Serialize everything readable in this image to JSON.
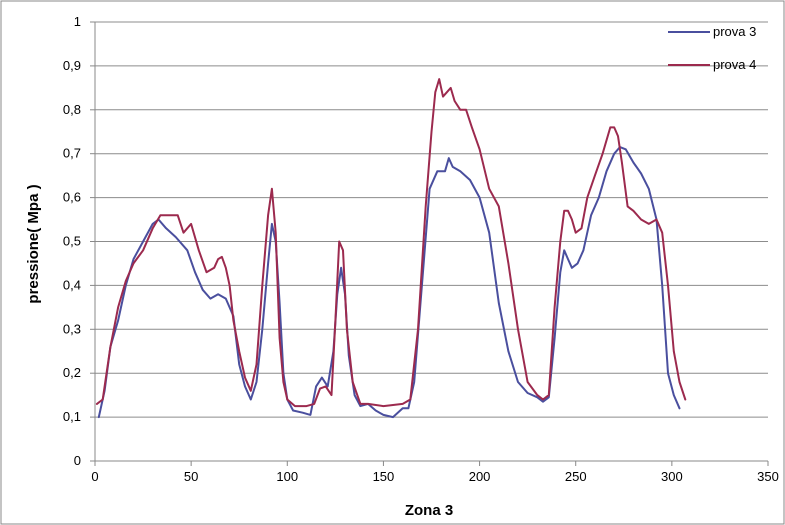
{
  "chart_data": {
    "type": "line",
    "title": "",
    "xlabel": "Zona 3",
    "ylabel": "pressione( Mpa )",
    "xlim": [
      0,
      350
    ],
    "ylim": [
      0,
      1
    ],
    "x_ticks": [
      0,
      50,
      100,
      150,
      200,
      250,
      300,
      350
    ],
    "y_ticks": [
      0,
      0.1,
      0.2,
      0.3,
      0.4,
      0.5,
      0.6,
      0.7,
      0.8,
      0.9,
      1
    ],
    "x_tick_labels": [
      "0",
      "50",
      "100",
      "150",
      "200",
      "250",
      "300",
      "350"
    ],
    "y_tick_labels": [
      "0",
      "0,1",
      "0,2",
      "0,3",
      "0,4",
      "0,5",
      "0,6",
      "0,7",
      "0,8",
      "0,9",
      "1"
    ],
    "grid": "horizontal",
    "legend_position": "top-right",
    "series": [
      {
        "name": "prova 3",
        "color": "#4a4f9e",
        "x": [
          2,
          5,
          8,
          12,
          16,
          20,
          25,
          30,
          33,
          37,
          42,
          48,
          52,
          56,
          60,
          64,
          68,
          72,
          75,
          78,
          81,
          84,
          87,
          90,
          92,
          94,
          96,
          98,
          100,
          103,
          108,
          112,
          115,
          118,
          121,
          124,
          126,
          128,
          130,
          132,
          135,
          138,
          142,
          146,
          150,
          155,
          160,
          163,
          166,
          170,
          174,
          178,
          182,
          184,
          186,
          190,
          195,
          200,
          205,
          210,
          215,
          220,
          225,
          230,
          233,
          236,
          239,
          242,
          244,
          246,
          248,
          251,
          254,
          258,
          262,
          266,
          270,
          273,
          276,
          280,
          284,
          288,
          292,
          295,
          298,
          301,
          304
        ],
        "y": [
          0.1,
          0.16,
          0.26,
          0.32,
          0.4,
          0.46,
          0.5,
          0.54,
          0.55,
          0.53,
          0.51,
          0.48,
          0.43,
          0.39,
          0.37,
          0.38,
          0.37,
          0.33,
          0.22,
          0.17,
          0.14,
          0.18,
          0.3,
          0.45,
          0.54,
          0.5,
          0.36,
          0.2,
          0.14,
          0.115,
          0.11,
          0.105,
          0.17,
          0.19,
          0.17,
          0.25,
          0.38,
          0.44,
          0.38,
          0.24,
          0.15,
          0.125,
          0.13,
          0.115,
          0.105,
          0.1,
          0.12,
          0.12,
          0.18,
          0.4,
          0.62,
          0.66,
          0.66,
          0.69,
          0.67,
          0.66,
          0.64,
          0.6,
          0.52,
          0.36,
          0.25,
          0.18,
          0.155,
          0.145,
          0.135,
          0.145,
          0.28,
          0.43,
          0.48,
          0.46,
          0.44,
          0.45,
          0.48,
          0.56,
          0.6,
          0.66,
          0.7,
          0.715,
          0.71,
          0.68,
          0.655,
          0.62,
          0.55,
          0.4,
          0.2,
          0.15,
          0.12
        ]
      },
      {
        "name": "prova 4",
        "color": "#9c2a4e",
        "x": [
          1,
          4,
          8,
          12,
          16,
          20,
          25,
          30,
          34,
          38,
          43,
          46,
          50,
          54,
          58,
          62,
          64,
          66,
          68,
          70,
          72,
          75,
          78,
          81,
          84,
          87,
          90,
          92,
          94,
          96,
          98,
          100,
          104,
          110,
          114,
          117,
          120,
          123,
          125,
          127,
          129,
          131,
          134,
          138,
          142,
          150,
          160,
          164,
          168,
          172,
          175,
          177,
          179,
          181,
          183,
          185,
          187,
          190,
          193,
          196,
          200,
          205,
          210,
          215,
          220,
          225,
          230,
          233,
          236,
          239,
          242,
          244,
          246,
          248,
          250,
          253,
          256,
          260,
          264,
          268,
          270,
          272,
          274,
          277,
          280,
          284,
          288,
          292,
          295,
          298,
          301,
          304,
          307
        ],
        "y": [
          0.13,
          0.14,
          0.26,
          0.35,
          0.41,
          0.45,
          0.48,
          0.53,
          0.56,
          0.56,
          0.56,
          0.52,
          0.54,
          0.48,
          0.43,
          0.44,
          0.46,
          0.465,
          0.44,
          0.4,
          0.32,
          0.25,
          0.19,
          0.16,
          0.22,
          0.4,
          0.56,
          0.62,
          0.52,
          0.28,
          0.18,
          0.14,
          0.125,
          0.125,
          0.13,
          0.165,
          0.17,
          0.15,
          0.32,
          0.5,
          0.48,
          0.3,
          0.18,
          0.13,
          0.13,
          0.125,
          0.13,
          0.14,
          0.3,
          0.58,
          0.75,
          0.84,
          0.87,
          0.83,
          0.84,
          0.85,
          0.82,
          0.8,
          0.8,
          0.76,
          0.71,
          0.62,
          0.58,
          0.45,
          0.3,
          0.18,
          0.15,
          0.14,
          0.15,
          0.35,
          0.5,
          0.57,
          0.57,
          0.55,
          0.52,
          0.53,
          0.6,
          0.65,
          0.7,
          0.76,
          0.76,
          0.74,
          0.68,
          0.58,
          0.57,
          0.55,
          0.54,
          0.55,
          0.52,
          0.4,
          0.25,
          0.18,
          0.14
        ]
      }
    ]
  }
}
